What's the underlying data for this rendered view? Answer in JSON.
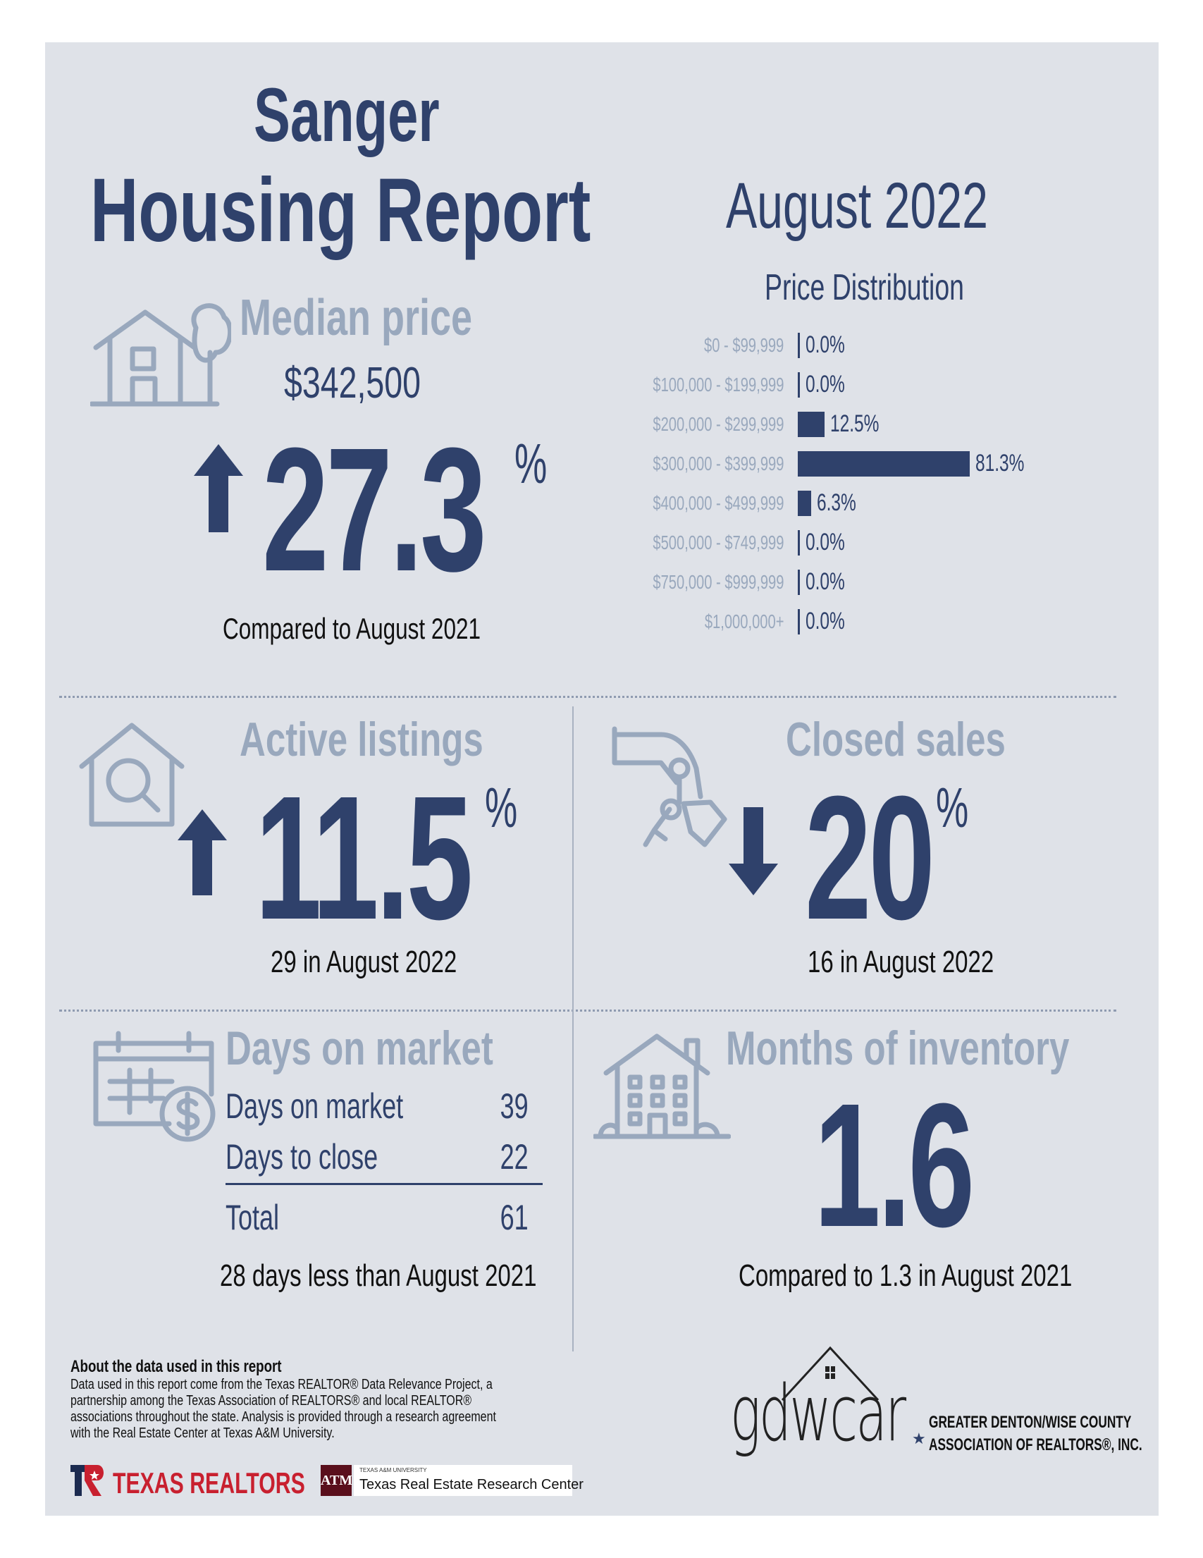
{
  "header": {
    "city": "Sanger",
    "title": "Housing Report",
    "period": "August 2022"
  },
  "median_price": {
    "heading": "Median price",
    "value": "$342,500",
    "change": "27.3",
    "percent_sign": "%",
    "direction": "up",
    "comparison": "Compared to August 2021"
  },
  "chart_data": {
    "type": "bar",
    "orientation": "horizontal",
    "title": "Price Distribution",
    "categories": [
      "$0 - $99,999",
      "$100,000 - $199,999",
      "$200,000 - $299,999",
      "$300,000 - $399,999",
      "$400,000 - $499,999",
      "$500,000 - $749,999",
      "$750,000 - $999,999",
      "$1,000,000+"
    ],
    "values": [
      0.0,
      0.0,
      12.5,
      81.3,
      6.3,
      0.0,
      0.0,
      0.0
    ],
    "value_labels": [
      "0.0%",
      "0.0%",
      "12.5%",
      "81.3%",
      "6.3%",
      "0.0%",
      "0.0%",
      "0.0%"
    ],
    "unit": "%",
    "xlim": [
      0,
      100
    ]
  },
  "active_listings": {
    "heading": "Active listings",
    "change": "11.5",
    "percent_sign": "%",
    "direction": "up",
    "note": "29 in August 2022"
  },
  "closed_sales": {
    "heading": "Closed sales",
    "change": "20",
    "percent_sign": "%",
    "direction": "down",
    "note": "16 in August 2022"
  },
  "days_on_market": {
    "heading": "Days on market",
    "rows": [
      {
        "label": "Days on market",
        "value": "39"
      },
      {
        "label": "Days to close",
        "value": "22"
      }
    ],
    "total_label": "Total",
    "total_value": "61",
    "note": "28 days less than August 2021"
  },
  "months_inventory": {
    "heading": "Months of inventory",
    "value": "1.6",
    "note": "Compared to 1.3 in August 2021"
  },
  "footer": {
    "about_title": "About the data used in this report",
    "about_lines": [
      "Data used in this report come from the Texas REALTOR® Data Relevance Project, a",
      "partnership among the Texas Association of REALTORS® and local REALTOR®",
      "associations throughout the state. Analysis is provided through a research agreement",
      "with the Real Estate Center at Texas A&M University."
    ],
    "texas_realtors": "TEXAS REALTORS",
    "tamu_small": "TEXAS A&M UNIVERSITY",
    "tamu_name": "Texas Real Estate Research Center",
    "gdwcar_logo": "gdwcar",
    "gdwcar_line1": "GREATER DENTON/WISE COUNTY",
    "gdwcar_line2": "ASSOCIATION OF REALTORS®, INC."
  },
  "colors": {
    "navy": "#2f416b",
    "steel": "#99a8bd",
    "panel": "#dfe2e8"
  }
}
